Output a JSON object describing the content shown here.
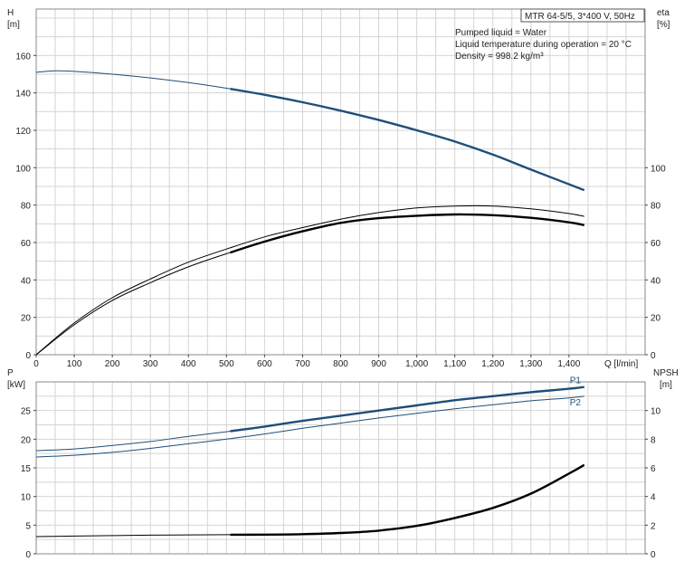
{
  "colors": {
    "blue": "#1f4e79",
    "black": "#000000",
    "grid": "#d4d4d4"
  },
  "info": {
    "model": "MTR 64-5/5, 3*400 V, 50Hz",
    "lines": [
      "Pumped liquid = Water",
      "Liquid temperature during operation = 20 °C",
      "Density = 998.2 kg/m³"
    ]
  },
  "chart_data": [
    {
      "type": "line",
      "panel": "top",
      "ylabel_left": [
        "H",
        "[m]"
      ],
      "ylabel_right": [
        "eta",
        "[%]"
      ],
      "xlabel": "Q [l/min]",
      "xlim": [
        0,
        1600
      ],
      "ylim_left": [
        0,
        180
      ],
      "ylim_right": [
        0,
        180
      ],
      "x_ticks": [
        0,
        100,
        200,
        300,
        400,
        500,
        600,
        700,
        800,
        900,
        1000,
        1100,
        1200,
        1300,
        1400
      ],
      "x_tick_labels": [
        "0",
        "100",
        "200",
        "300",
        "400",
        "500",
        "600",
        "700",
        "800",
        "900",
        "1,000",
        "1,100",
        "1,200",
        "1,300",
        "1,400"
      ],
      "y_ticks_left": [
        0,
        20,
        40,
        60,
        80,
        100,
        120,
        140,
        160
      ],
      "y_ticks_right": [
        0,
        20,
        40,
        60,
        80,
        100
      ],
      "grid": true,
      "series": [
        {
          "id": "head",
          "color": "#1f4e79",
          "x": [
            0,
            50,
            100,
            200,
            300,
            400,
            500,
            600,
            700,
            800,
            900,
            1000,
            1100,
            1200,
            1300,
            1440
          ],
          "y": [
            151,
            151.8,
            151.5,
            150,
            148,
            145.5,
            142.5,
            139,
            135,
            130.5,
            125.5,
            120,
            114,
            107,
            99,
            88
          ],
          "bold_from": 510
        },
        {
          "id": "eta-1",
          "color": "#000000",
          "x": [
            0,
            100,
            200,
            300,
            400,
            500,
            600,
            700,
            800,
            900,
            1000,
            1100,
            1200,
            1300,
            1400,
            1440
          ],
          "y": [
            0,
            17,
            30.5,
            40.5,
            49.5,
            56.5,
            63,
            68,
            72.5,
            76,
            78.5,
            79.5,
            79.5,
            78,
            75.5,
            74
          ],
          "bold_from": null
        },
        {
          "id": "eta-2",
          "color": "#000000",
          "x": [
            0,
            100,
            200,
            300,
            400,
            500,
            600,
            700,
            800,
            900,
            1000,
            1100,
            1200,
            1300,
            1400,
            1440
          ],
          "y": [
            0,
            16,
            29,
            38.5,
            47,
            54,
            60.5,
            66,
            70.5,
            73,
            74.3,
            75,
            74.6,
            73.2,
            70.8,
            69.3
          ],
          "bold_from": 510
        }
      ]
    },
    {
      "type": "line",
      "panel": "bottom",
      "ylabel_left": [
        "P",
        "[kW]"
      ],
      "ylabel_right": [
        "NPSH",
        "[m]"
      ],
      "xlim": [
        0,
        1600
      ],
      "ylim_left": [
        0,
        30
      ],
      "ylim_right": [
        0,
        12
      ],
      "y_ticks_left": [
        0,
        5,
        10,
        15,
        20,
        25
      ],
      "y_ticks_right": [
        0,
        2,
        4,
        6,
        8,
        10
      ],
      "grid": true,
      "series": [
        {
          "name": "P1",
          "color": "#1f4e79",
          "axis": "left",
          "x": [
            0,
            100,
            200,
            300,
            400,
            500,
            600,
            700,
            800,
            900,
            1000,
            1100,
            1200,
            1300,
            1400,
            1440
          ],
          "y": [
            18,
            18.3,
            18.9,
            19.6,
            20.5,
            21.3,
            22.2,
            23.2,
            24.1,
            25.0,
            25.9,
            26.8,
            27.5,
            28.2,
            28.8,
            29.1
          ],
          "bold_from": 510
        },
        {
          "name": "P2",
          "color": "#1f4e79",
          "axis": "left",
          "x": [
            0,
            100,
            200,
            300,
            400,
            500,
            600,
            700,
            800,
            900,
            1000,
            1100,
            1200,
            1300,
            1400,
            1440
          ],
          "y": [
            16.9,
            17.2,
            17.7,
            18.4,
            19.2,
            20.0,
            20.9,
            21.9,
            22.8,
            23.7,
            24.5,
            25.3,
            26.0,
            26.7,
            27.2,
            27.5
          ],
          "bold_from": null
        },
        {
          "id": "npsh",
          "color": "#000000",
          "axis": "right",
          "x": [
            0,
            100,
            200,
            300,
            400,
            500,
            600,
            700,
            800,
            900,
            1000,
            1100,
            1200,
            1300,
            1400,
            1440
          ],
          "y": [
            1.2,
            1.24,
            1.27,
            1.3,
            1.32,
            1.33,
            1.34,
            1.37,
            1.45,
            1.62,
            1.95,
            2.5,
            3.2,
            4.2,
            5.6,
            6.2
          ],
          "bold_from": 510
        }
      ]
    }
  ]
}
